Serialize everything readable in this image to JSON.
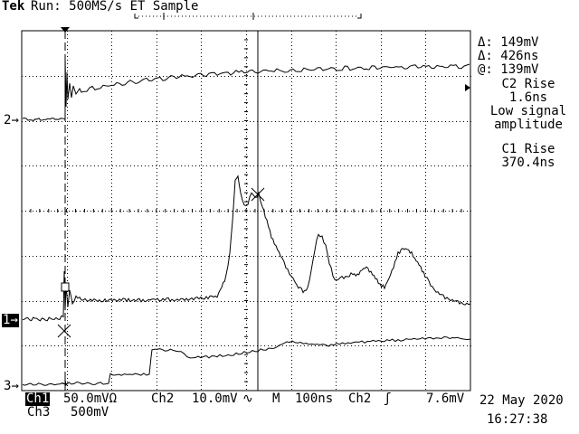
{
  "header": {
    "brand": "Tek",
    "status": "Run: 500MS/s ET Sample"
  },
  "readout": {
    "delta_v": "Δ: 149mV",
    "delta_t": "Δ: 426ns",
    "at_v": "@: 139mV",
    "c2_rise_label": "C2 Rise",
    "c2_rise_value": "1.6ns",
    "warning_line1": "Low signal",
    "warning_line2": "amplitude",
    "c1_rise_label": "C1 Rise",
    "c1_rise_value": "370.4ns"
  },
  "channel_markers": {
    "ch2": "2",
    "ch1": "1",
    "ch3": "3"
  },
  "footer": {
    "ch1_label": "Ch1",
    "ch1_scale": "50.0mVΩ",
    "ch2_label": "Ch2",
    "ch2_scale": "10.0mV",
    "ch2_coupling_icon": "∿",
    "timebase_label": "M",
    "timebase_value": "100ns",
    "trigger_source": "Ch2",
    "trigger_slope_icon": "ʃ",
    "trigger_level": "7.6mV",
    "ch3_label": "Ch3",
    "ch3_scale": "500mV",
    "date": "22 May 2020",
    "time": "16:27:38"
  },
  "colors": {
    "background": "#ffffff",
    "foreground": "#000000"
  }
}
